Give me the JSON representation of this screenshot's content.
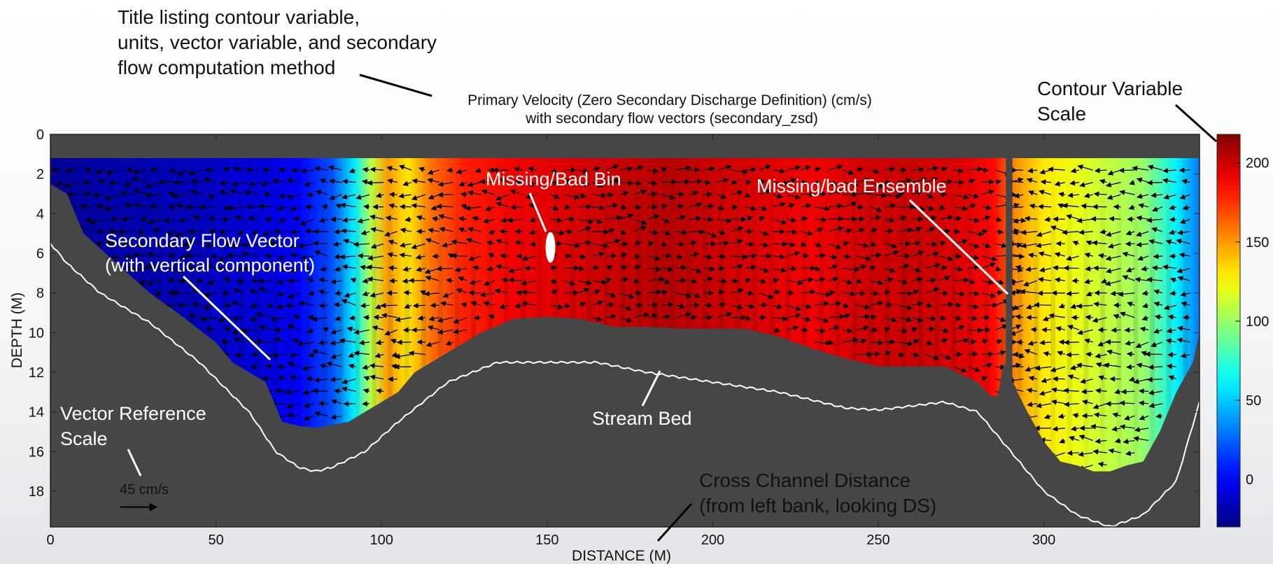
{
  "chart_data": {
    "type": "heatmap",
    "title": "Primary Velocity (Zero Secondary Discharge Definition) (cm/s)",
    "subtitle": "with secondary flow vectors (secondary_zsd)",
    "xlabel": "DISTANCE (M)",
    "ylabel": "DEPTH (M)",
    "xlim": [
      0,
      347
    ],
    "ylim": [
      19.8,
      0
    ],
    "x_ticks": [
      0,
      50,
      100,
      150,
      200,
      250,
      300
    ],
    "y_ticks": [
      0,
      2,
      4,
      6,
      8,
      10,
      12,
      14,
      16,
      18
    ],
    "colorbar": {
      "ticks": [
        0,
        50,
        100,
        150,
        200
      ],
      "range": [
        -30,
        218
      ],
      "colormap": "jet"
    },
    "top_of_data_depth": 1.2,
    "missing_ensemble_x": [
      288.5,
      290.5
    ],
    "missing_bin": {
      "x": 151,
      "depth": 5.7
    },
    "velocity_profile": {
      "x": [
        0,
        15,
        30,
        45,
        55,
        65,
        75,
        85,
        92,
        97,
        102,
        108,
        115,
        125,
        140,
        155,
        170,
        185,
        200,
        215,
        230,
        245,
        260,
        275,
        285,
        292,
        300,
        310,
        320,
        330,
        340,
        347
      ],
      "value": [
        -25,
        -20,
        -18,
        -15,
        -10,
        -8,
        0,
        20,
        60,
        110,
        150,
        130,
        160,
        180,
        190,
        195,
        200,
        205,
        200,
        195,
        190,
        198,
        200,
        195,
        185,
        150,
        130,
        120,
        110,
        100,
        60,
        30
      ]
    },
    "data_bottom": {
      "x": [
        0,
        5,
        10,
        20,
        30,
        40,
        50,
        55,
        60,
        65,
        70,
        75,
        80,
        90,
        95,
        100,
        105,
        110,
        120,
        130,
        140,
        150,
        160,
        170,
        180,
        190,
        200,
        210,
        220,
        230,
        240,
        250,
        260,
        270,
        280,
        284,
        286,
        288,
        292,
        295,
        300,
        305,
        310,
        315,
        320,
        325,
        330,
        335,
        340,
        345,
        347
      ],
      "depth": [
        2.5,
        3.0,
        5.0,
        6.5,
        8.0,
        9.2,
        10.5,
        11.5,
        12.0,
        12.5,
        14.5,
        14.7,
        14.8,
        14.5,
        14.0,
        13.5,
        13.0,
        12.0,
        11.0,
        10.0,
        9.3,
        9.2,
        9.3,
        9.7,
        9.7,
        9.8,
        9.8,
        9.8,
        10.2,
        10.8,
        11.3,
        11.7,
        11.7,
        11.7,
        12.5,
        13.2,
        13.2,
        11.5,
        13.0,
        14.0,
        15.5,
        16.5,
        16.7,
        17.0,
        17.0,
        16.7,
        16.5,
        15.0,
        13.0,
        11.5,
        10.0
      ]
    },
    "stream_bed": {
      "x": [
        0,
        5,
        15,
        30,
        45,
        60,
        68,
        75,
        80,
        85,
        95,
        105,
        120,
        135,
        150,
        165,
        180,
        200,
        220,
        240,
        250,
        260,
        270,
        280,
        290,
        300,
        310,
        320,
        330,
        340,
        347
      ],
      "depth": [
        5.5,
        6.5,
        8.0,
        9.5,
        11.5,
        14.0,
        16.0,
        16.8,
        17.0,
        16.8,
        16.0,
        14.5,
        12.5,
        11.5,
        11.5,
        11.5,
        12.0,
        12.5,
        13.0,
        13.8,
        13.9,
        13.7,
        13.5,
        14.0,
        16.0,
        18.0,
        19.2,
        19.8,
        19.2,
        17.5,
        13.5
      ]
    },
    "vector_reference": {
      "label": "45 cm/s",
      "magnitude": 45,
      "x": 21,
      "depth": 18.8
    }
  },
  "annotations": {
    "title_callout": [
      "Title listing contour variable,",
      "units, vector variable, and secondary",
      "flow computation method"
    ],
    "contour_scale": [
      "Contour Variable",
      "Scale"
    ],
    "missing_bin": "Missing/Bad Bin",
    "missing_ensemble": "Missing/bad Ensemble",
    "secondary_flow": [
      "Secondary Flow Vector",
      "(with vertical component)"
    ],
    "vector_reference": [
      "Vector Reference",
      "Scale"
    ],
    "stream_bed": "Stream Bed",
    "cross_channel": [
      "Cross Channel Distance",
      "(from left bank, looking DS)"
    ]
  },
  "colors": {
    "plot_background": "#464646",
    "annotation_white": "#ffffff",
    "text_black": "#111111"
  }
}
